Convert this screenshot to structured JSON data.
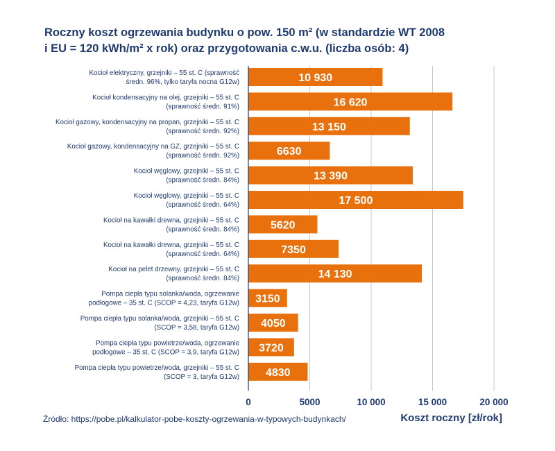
{
  "title_line1": "Roczny koszt ogrzewania budynku o pow. 150 m² (w standardzie WT 2008",
  "title_line2": "i EU = 120 kWh/m² x rok) oraz przygotowania c.w.u. (liczba osób: 4)",
  "source": "Źródło: https://pobe.pl/kalkulator-pobe-koszty-ogrzewania-w-typowych-budynkach/",
  "colors": {
    "bar": "#e8710d",
    "text": "#1f3a6e",
    "grid": "#c8c8c8",
    "label_text": "#ffffff"
  },
  "chart_data": {
    "type": "bar",
    "orientation": "horizontal",
    "xlabel": "Koszt roczny [zł/rok]",
    "xlim": [
      0,
      20000
    ],
    "xticks": [
      0,
      5000,
      10000,
      15000,
      20000
    ],
    "xtick_labels": [
      "0",
      "5000",
      "10 000",
      "15 000",
      "20 000"
    ],
    "grid": true,
    "categories": [
      [
        "Kocioł elektryczny, grzejniki – 55 st. C (sprawność",
        "średn. 96%, tylko taryfa nocna G12w)"
      ],
      [
        "Kocioł kondensacyjny na olej, grzejniki – 55 st. C",
        "(sprawność średn. 91%)"
      ],
      [
        "Kocioł gazowy, kondensacyjny na propan, grzejniki – 55 st. C",
        "(sprawność średn. 92%)"
      ],
      [
        "Kocioł gazowy, kondensacyjny na GZ, grzejniki – 55 st. C",
        "(sprawność średn. 92%)"
      ],
      [
        "Kocioł węglowy, grzejniki – 55 st. C",
        "(sprawność średn. 84%)"
      ],
      [
        "Kocioł węglowy, grzejniki – 55 st. C",
        "(sprawność średn. 64%)"
      ],
      [
        "Kocioł na kawałki drewna, grzejniki – 55 st. C",
        "(sprawność średn. 84%)"
      ],
      [
        "Kocioł na kawałki drewna, grzejniki – 55 st. C",
        "(sprawność średn. 64%)"
      ],
      [
        "Kocioł na pelet drzewny, grzejniki – 55 st. C",
        "(sprawność średn. 84%)"
      ],
      [
        "Pompa ciepła typu solanka/woda, ogrzewanie",
        "podłogowe – 35 st. C (SCOP = 4,23, taryfa G12w)"
      ],
      [
        "Pompa ciepła typu solanka/woda, grzejniki – 55 st. C",
        "(SCOP = 3,58, taryfa G12w)"
      ],
      [
        "Pompa ciepła typu powietrze/woda, ogrzewanie",
        "podłogowe – 35 st. C (SCOP = 3,9, taryfa G12w)"
      ],
      [
        "Pompa ciepła typu powietrze/woda, grzejniki – 55 st. C",
        "(SCOP = 3, taryfa G12w)"
      ]
    ],
    "values": [
      10930,
      16620,
      13150,
      6630,
      13390,
      17500,
      5620,
      7350,
      14130,
      3150,
      4050,
      3720,
      4830
    ],
    "value_labels": [
      "10 930",
      "16 620",
      "13 150",
      "6630",
      "13 390",
      "17 500",
      "5620",
      "7350",
      "14 130",
      "3150",
      "4050",
      "3720",
      "4830"
    ]
  }
}
